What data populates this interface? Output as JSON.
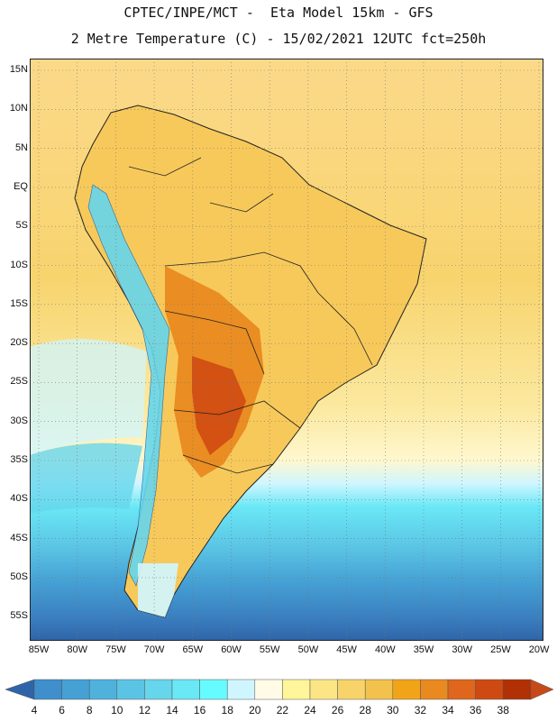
{
  "title_line1": "CPTEC/INPE/MCT -  Eta Model 15km - GFS",
  "title_line2": "2 Metre Temperature (C) - 15/02/2021 12UTC fct=250h",
  "map": {
    "lat_labels": [
      "15N",
      "10N",
      "5N",
      "EQ",
      "5S",
      "10S",
      "15S",
      "20S",
      "25S",
      "30S",
      "35S",
      "40S",
      "45S",
      "50S",
      "55S"
    ],
    "lon_labels": [
      "85W",
      "80W",
      "75W",
      "70W",
      "65W",
      "60W",
      "55W",
      "50W",
      "45W",
      "40W",
      "35W",
      "30W",
      "25W",
      "20W"
    ]
  },
  "colorbar": {
    "ticks": [
      "4",
      "6",
      "8",
      "10",
      "12",
      "14",
      "16",
      "18",
      "20",
      "22",
      "24",
      "26",
      "28",
      "30",
      "32",
      "34",
      "36",
      "38"
    ],
    "colors": [
      "#3a7fc0",
      "#3f8fcc",
      "#45a0d4",
      "#4fb2dc",
      "#5bc4e4",
      "#66d6ec",
      "#6ae8f6",
      "#66fbff",
      "#cff6ff",
      "#fffbe6",
      "#fff59a",
      "#fbe585",
      "#f7d36a",
      "#f2c24c",
      "#f2a418",
      "#e98a20",
      "#df661c",
      "#cf4a12",
      "#b23006",
      "#c64a18"
    ],
    "left_arrow_color": "#2f64a8",
    "right_arrow_color": "#c64a18"
  }
}
